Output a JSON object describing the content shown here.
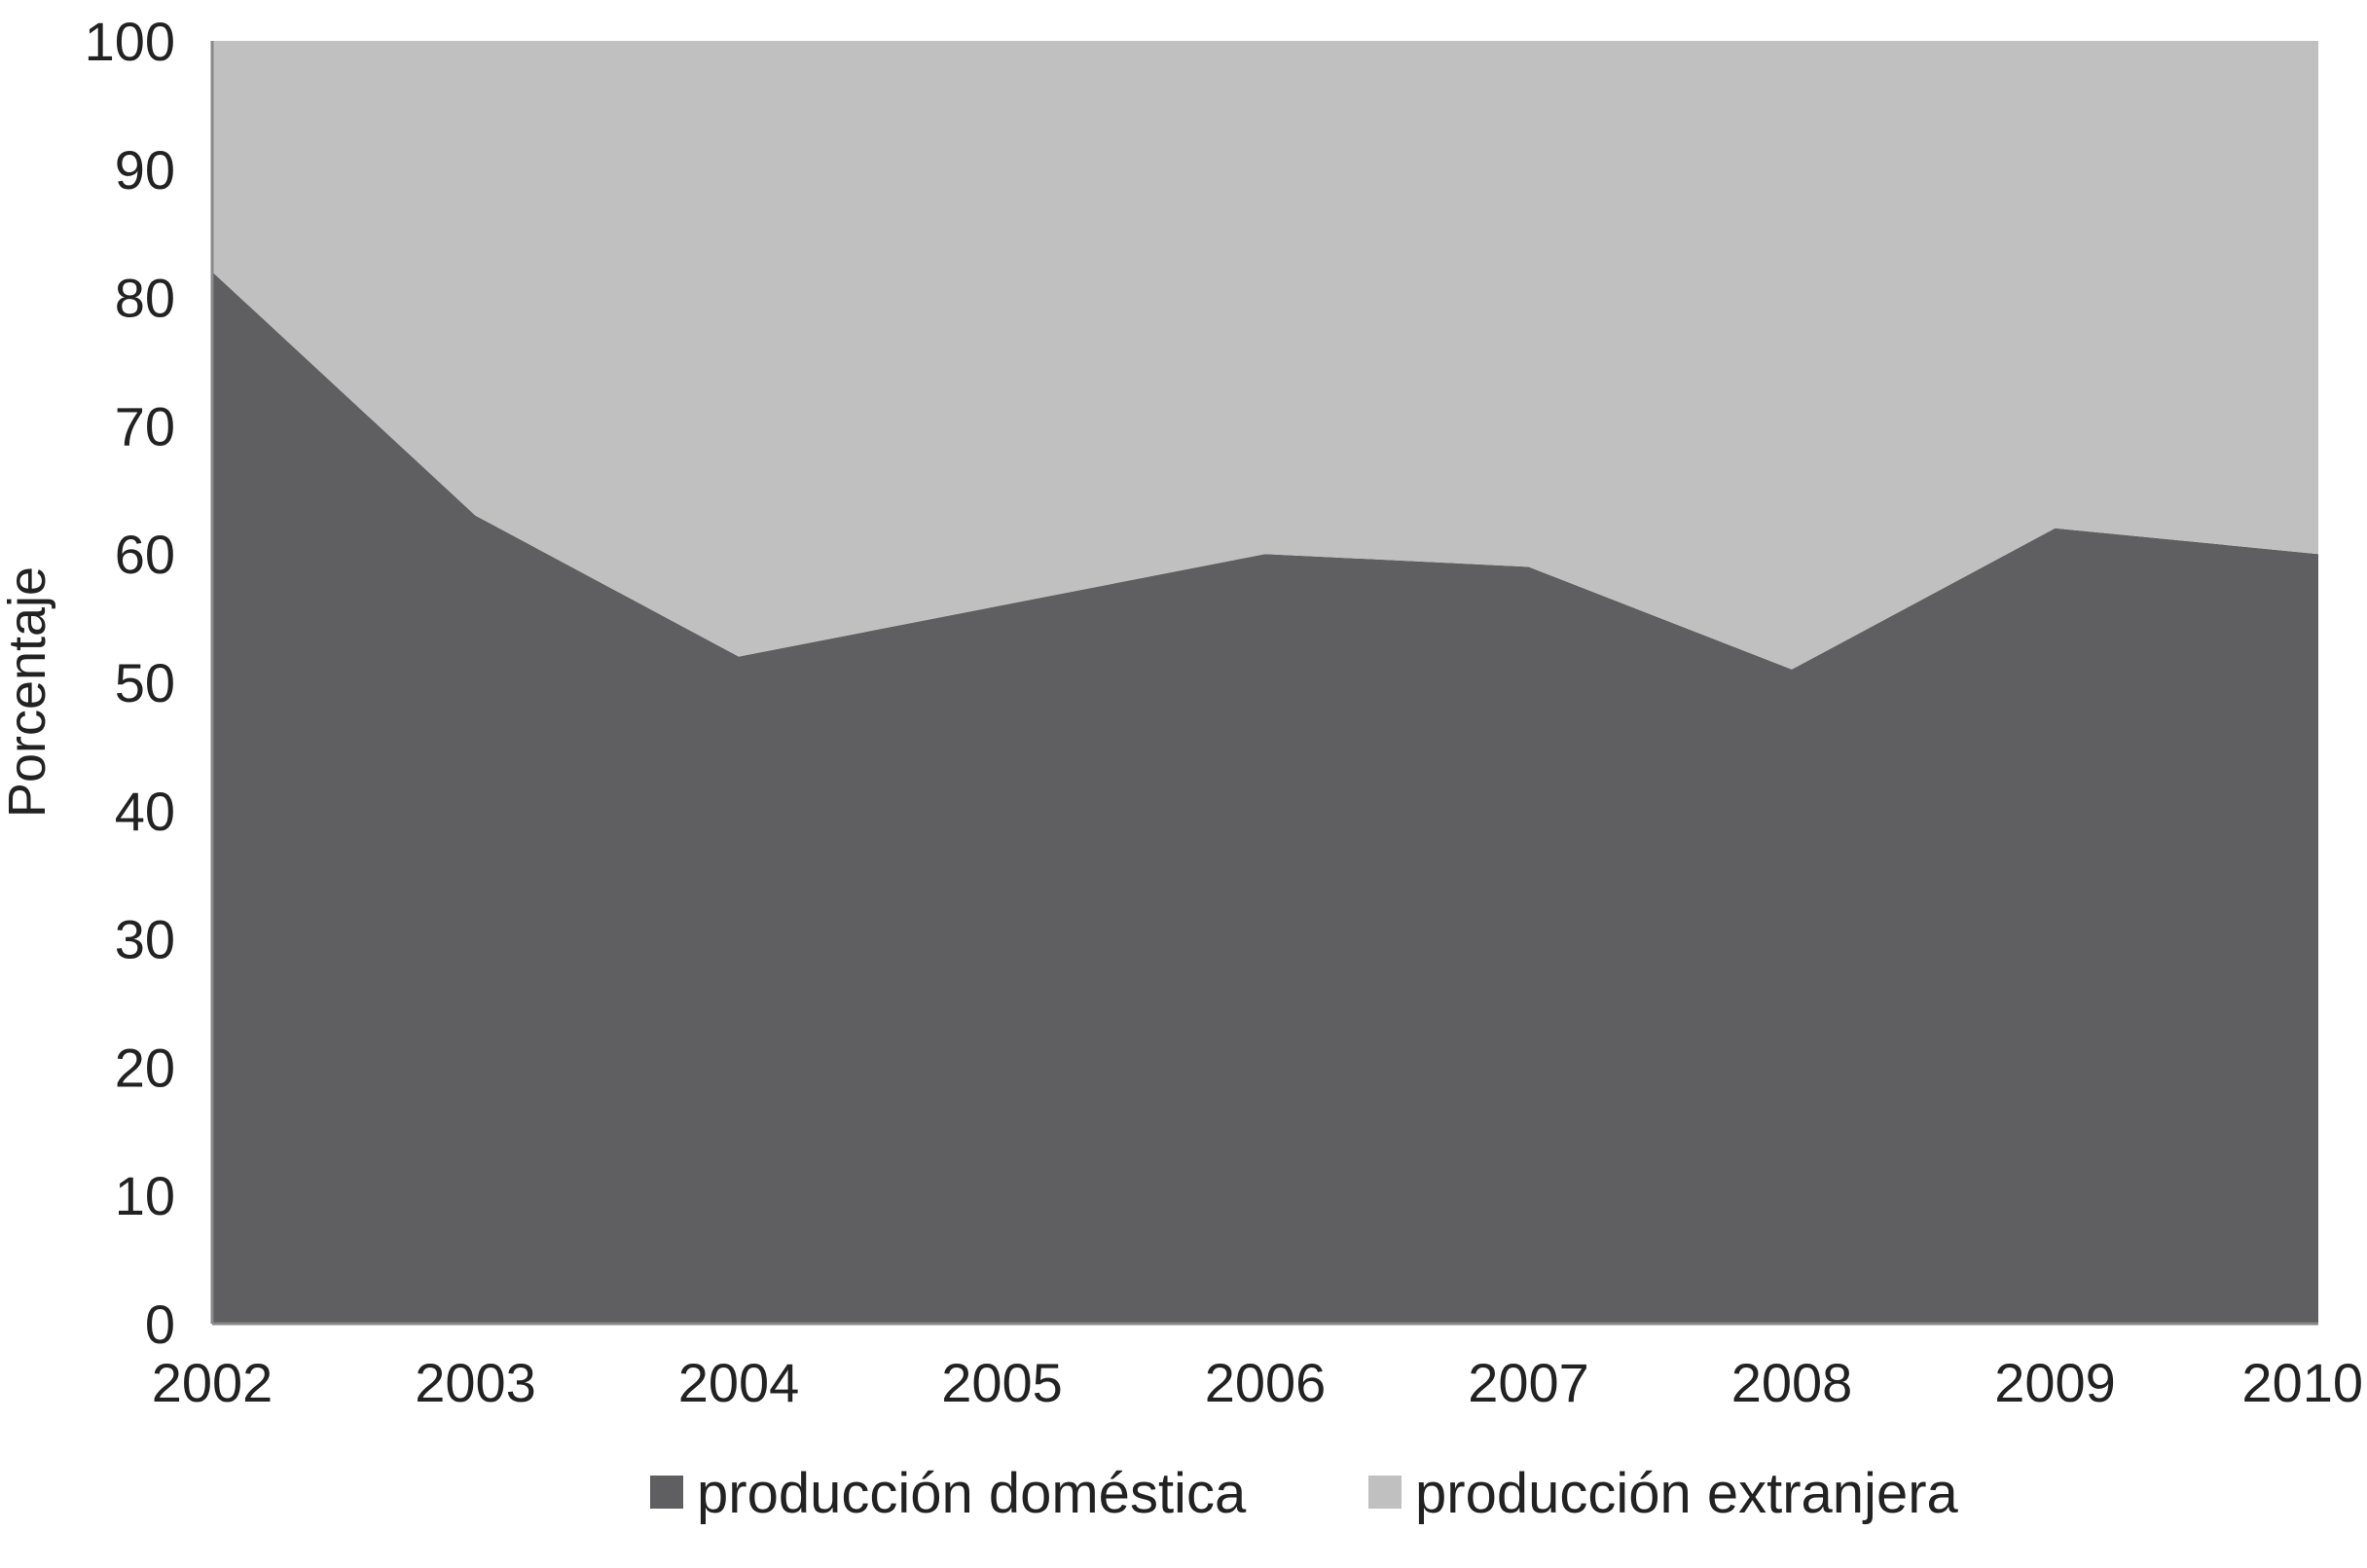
{
  "chart_data": {
    "type": "area",
    "stacked": true,
    "x": [
      "2002",
      "2003",
      "2004",
      "2005",
      "2006",
      "2007",
      "2008",
      "2009",
      "2010"
    ],
    "ylabel": "Porcentaje",
    "xlabel": "",
    "ylim": [
      0,
      100
    ],
    "yticks": [
      "0",
      "10",
      "20",
      "30",
      "40",
      "50",
      "60",
      "70",
      "80",
      "90",
      "100"
    ],
    "grid": false,
    "legend": "bottom",
    "series": [
      {
        "name": "producción doméstica",
        "values": [
          82,
          63,
          52,
          56,
          60,
          59,
          51,
          62,
          60
        ],
        "color": "#5f5f61"
      },
      {
        "name": "producción extranjera",
        "values": [
          18,
          37,
          48,
          44,
          40,
          41,
          49,
          38,
          40
        ],
        "color": "#c0c0c0"
      }
    ]
  }
}
